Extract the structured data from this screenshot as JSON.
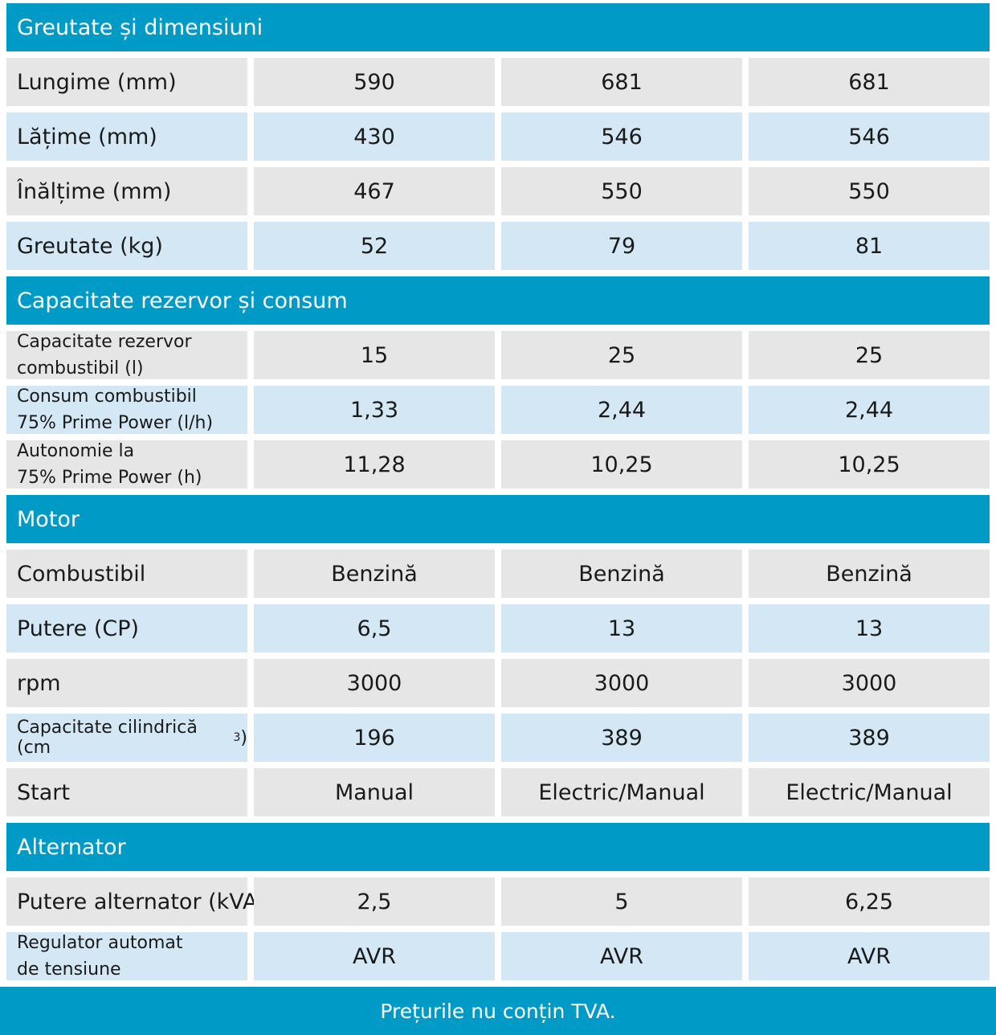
{
  "sections": {
    "dimensions": "Greutate și dimensiuni",
    "tank": "Capacitate rezervor și consum",
    "motor": "Motor",
    "alternator": "Alternator"
  },
  "rows": {
    "lungime": {
      "label": "Lungime (mm)",
      "v1": "590",
      "v2": "681",
      "v3": "681"
    },
    "latime": {
      "label": "Lățime (mm)",
      "v1": "430",
      "v2": "546",
      "v3": "546"
    },
    "inaltime": {
      "label": "Înălțime (mm)",
      "v1": "467",
      "v2": "550",
      "v3": "550"
    },
    "greutate": {
      "label": "Greutate (kg)",
      "v1": "52",
      "v2": "79",
      "v3": "81"
    },
    "cap_rezervor": {
      "label": "Capacitate rezervor\ncombustibil (l)",
      "v1": "15",
      "v2": "25",
      "v3": "25"
    },
    "consum": {
      "label": "Consum combustibil\n75% Prime Power (l/h)",
      "v1": "1,33",
      "v2": "2,44",
      "v3": "2,44"
    },
    "autonomie": {
      "label": "Autonomie la\n75% Prime Power (h)",
      "v1": "11,28",
      "v2": "10,25",
      "v3": "10,25"
    },
    "combustibil": {
      "label": "Combustibil",
      "v1": "Benzină",
      "v2": "Benzină",
      "v3": "Benzină"
    },
    "putere": {
      "label": "Putere (CP)",
      "v1": "6,5",
      "v2": "13",
      "v3": "13"
    },
    "rpm": {
      "label": "rpm",
      "v1": "3000",
      "v2": "3000",
      "v3": "3000"
    },
    "cilindrica": {
      "label": "Capacitate cilindrică (cm",
      "sup": "3",
      "label_end": ")",
      "v1": "196",
      "v2": "389",
      "v3": "389"
    },
    "start": {
      "label": "Start",
      "v1": "Manual",
      "v2": "Electric/Manual",
      "v3": "Electric/Manual"
    },
    "putere_alt": {
      "label": "Putere alternator (kVA)",
      "v1": "2,5",
      "v2": "5",
      "v3": "6,25"
    },
    "regulator": {
      "label": "Regulator automat\nde tensiune",
      "v1": "AVR",
      "v2": "AVR",
      "v3": "AVR"
    }
  },
  "footer": "Prețurile nu conțin TVA."
}
